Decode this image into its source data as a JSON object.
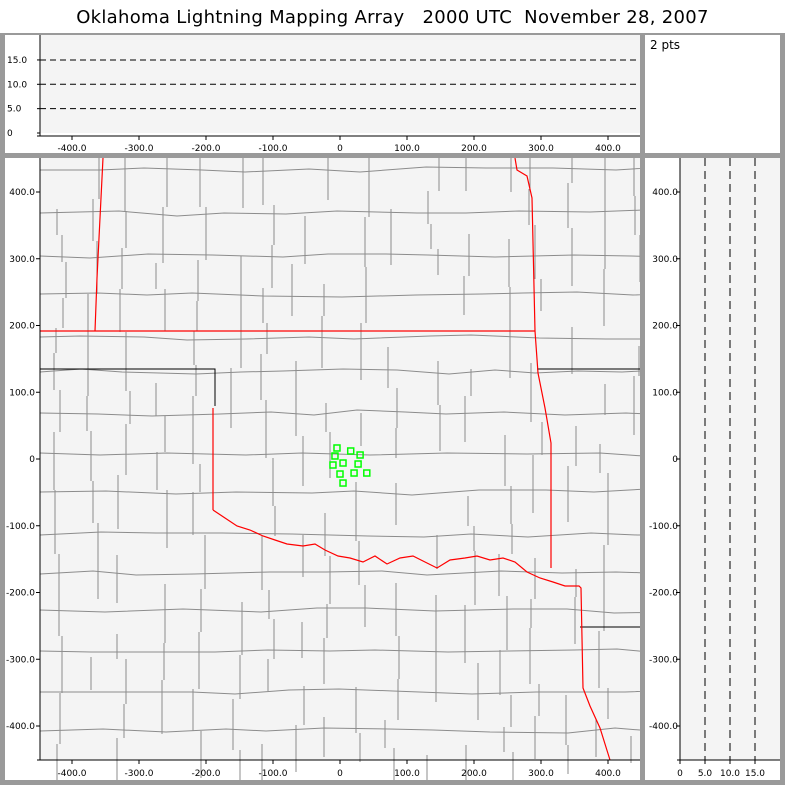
{
  "title": "Oklahoma Lightning Mapping Array   2000 UTC  November 28, 2007",
  "point_count": "2 pts",
  "colors": {
    "plot_bg": "#f4f4f4",
    "county": "#8c8c8c",
    "state_border": "#ff0000",
    "source_marker": "#00ff00"
  },
  "altitude_panel": {
    "y_ticks": [
      "0",
      "5.0",
      "10.0",
      "15.0"
    ],
    "x_ticks": [
      "-400.0",
      "-300.0",
      "-200.0",
      "-100.0",
      "0",
      "100.0",
      "200.0",
      "300.0",
      "400.0"
    ],
    "dashed_levels": [
      5,
      10,
      15
    ]
  },
  "map_panel": {
    "x_ticks": [
      "-400.0",
      "-300.0",
      "-200.0",
      "-100.0",
      "0",
      "100.0",
      "200.0",
      "300.0",
      "400.0"
    ],
    "y_ticks": [
      "400.0",
      "300.0",
      "200.0",
      "100.0",
      "0",
      "-100.0",
      "-200.0",
      "-300.0",
      "-400.0"
    ]
  },
  "side_panel": {
    "y_ticks": [
      "400.0",
      "300.0",
      "200.0",
      "100.0",
      "0",
      "-100.0",
      "-200.0",
      "-300.0",
      "-400.0"
    ],
    "x_ticks": [
      "0",
      "5.0",
      "10.0",
      "15.0"
    ],
    "dashed_levels": [
      5,
      10,
      15
    ]
  },
  "chart_data": {
    "type": "scatter",
    "xlim": [
      -450,
      450
    ],
    "ylim": [
      -450,
      450
    ],
    "points": [
      [
        -4.5,
        16.5
      ],
      [
        16,
        12
      ],
      [
        30,
        6
      ],
      [
        -7.5,
        4.5
      ],
      [
        4.5,
        -6
      ],
      [
        -10.5,
        -9
      ],
      [
        27,
        -7.5
      ],
      [
        0,
        -22.5
      ],
      [
        21,
        -21
      ],
      [
        40,
        -21
      ],
      [
        4.5,
        -36
      ]
    ]
  }
}
